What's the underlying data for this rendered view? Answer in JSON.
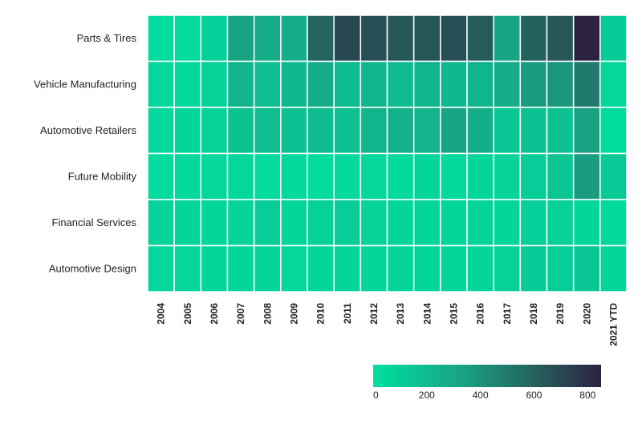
{
  "chart_data": {
    "type": "heatmap",
    "title": "",
    "xlabel": "",
    "ylabel": "",
    "rows": [
      "Parts & Tires",
      "Vehicle Manufacturing",
      "Automotive Retailers",
      "Future Mobility",
      "Financial Services",
      "Automotive Design"
    ],
    "columns": [
      "2004",
      "2005",
      "2006",
      "2007",
      "2008",
      "2009",
      "2010",
      "2011",
      "2012",
      "2013",
      "2014",
      "2015",
      "2016",
      "2017",
      "2018",
      "2019",
      "2020",
      "2021 YTD"
    ],
    "values": [
      [
        35,
        30,
        90,
        330,
        280,
        270,
        590,
        700,
        670,
        640,
        650,
        680,
        620,
        320,
        600,
        640,
        840,
        110
      ],
      [
        50,
        40,
        80,
        230,
        190,
        210,
        280,
        200,
        220,
        200,
        230,
        210,
        230,
        280,
        360,
        380,
        500,
        50
      ],
      [
        40,
        60,
        80,
        160,
        190,
        170,
        200,
        170,
        240,
        260,
        240,
        320,
        270,
        140,
        160,
        160,
        340,
        20
      ],
      [
        30,
        40,
        50,
        50,
        30,
        40,
        20,
        40,
        50,
        40,
        60,
        40,
        60,
        70,
        100,
        150,
        360,
        120
      ],
      [
        70,
        60,
        60,
        70,
        100,
        60,
        80,
        100,
        70,
        60,
        60,
        60,
        70,
        60,
        90,
        80,
        60,
        40
      ],
      [
        50,
        50,
        60,
        60,
        60,
        50,
        60,
        60,
        60,
        60,
        60,
        60,
        60,
        80,
        110,
        100,
        140,
        60
      ]
    ],
    "colorbar": {
      "min": 0,
      "max": 850,
      "ticks": [
        0,
        200,
        400,
        600,
        800
      ],
      "colors": [
        "#00e0a0",
        "#19a184",
        "#26595a",
        "#2d2040"
      ]
    }
  }
}
